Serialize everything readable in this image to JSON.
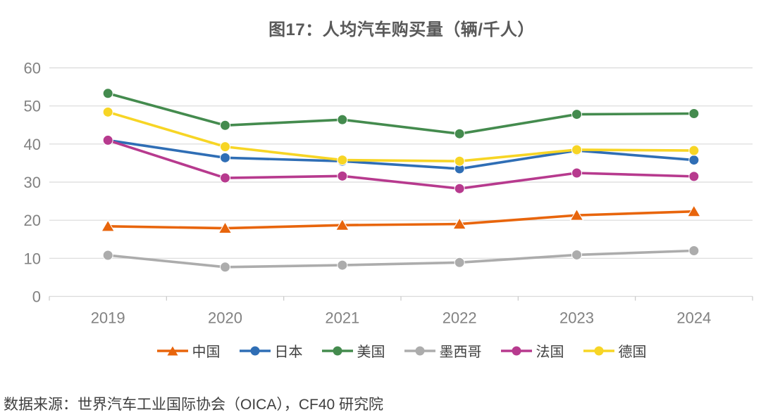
{
  "title": "图17：人均汽车购买量（辆/千人）",
  "source_note": "数据来源：世界汽车工业国际协会（OICA），CF40 研究院",
  "chart_data": {
    "type": "line",
    "title": "图17：人均汽车购买量（辆/千人）",
    "x_categories": [
      "2019",
      "2020",
      "2021",
      "2022",
      "2023",
      "2024"
    ],
    "series": [
      {
        "name": "中国",
        "color": "#E8650C",
        "marker": "triangle",
        "values": [
          18.4,
          17.9,
          18.7,
          19.0,
          21.3,
          22.3
        ]
      },
      {
        "name": "日本",
        "color": "#2F6EB5",
        "marker": "circle",
        "values": [
          41.0,
          36.4,
          35.5,
          33.5,
          38.3,
          35.8
        ]
      },
      {
        "name": "美国",
        "color": "#448B4E",
        "marker": "circle",
        "values": [
          53.3,
          44.9,
          46.4,
          42.7,
          47.8,
          48.0
        ]
      },
      {
        "name": "墨西哥",
        "color": "#ACACAC",
        "marker": "circle",
        "values": [
          10.8,
          7.7,
          8.2,
          8.9,
          10.9,
          12.0
        ]
      },
      {
        "name": "法国",
        "color": "#B73A8E",
        "marker": "circle",
        "values": [
          41.0,
          31.1,
          31.6,
          28.3,
          32.4,
          31.5
        ]
      },
      {
        "name": "德国",
        "color": "#F7D525",
        "marker": "circle",
        "values": [
          48.4,
          39.3,
          35.8,
          35.5,
          38.5,
          38.3
        ]
      }
    ],
    "ylim": [
      0,
      60
    ],
    "yticks": [
      0,
      10,
      20,
      30,
      40,
      50,
      60
    ],
    "grid": true,
    "legend_position": "bottom",
    "xlabel": "",
    "ylabel": "",
    "styles": {
      "grid_color": "#DADADA",
      "axis_tick_color": "#C9C9C9",
      "tick_label_color": "#828282",
      "title_color": "#595959",
      "text_color": "#3F3F3F",
      "background": "#FFFFFF"
    }
  }
}
